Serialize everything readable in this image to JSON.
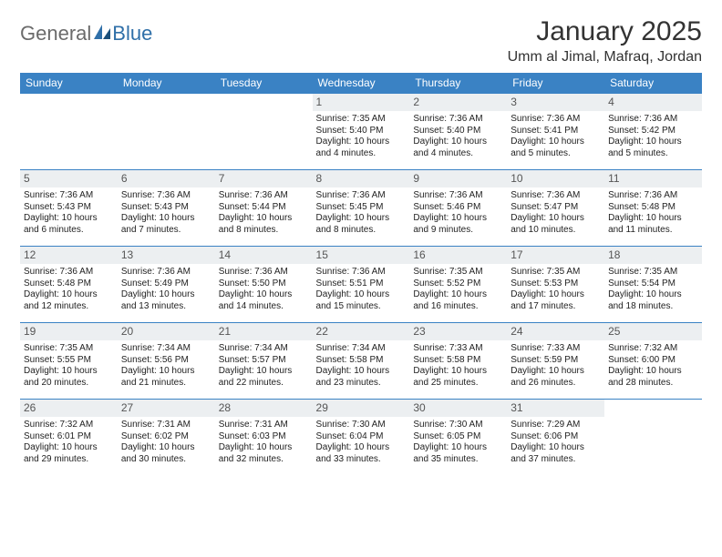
{
  "brand": {
    "part1": "General",
    "part2": "Blue"
  },
  "title": "January 2025",
  "location": "Umm al Jimal, Mafraq, Jordan",
  "colors": {
    "header_bg": "#3a82c4",
    "header_text": "#ffffff",
    "daynum_bg": "#eceff1",
    "daynum_text": "#555555",
    "border": "#3a82c4",
    "body_text": "#222222",
    "title_text": "#333333",
    "logo_gray": "#6b6b6b",
    "logo_blue": "#2f6fa8"
  },
  "weekdays": [
    "Sunday",
    "Monday",
    "Tuesday",
    "Wednesday",
    "Thursday",
    "Friday",
    "Saturday"
  ],
  "weeks": [
    [
      {
        "n": "",
        "sr": "",
        "ss": "",
        "dl": ""
      },
      {
        "n": "",
        "sr": "",
        "ss": "",
        "dl": ""
      },
      {
        "n": "",
        "sr": "",
        "ss": "",
        "dl": ""
      },
      {
        "n": "1",
        "sr": "Sunrise: 7:35 AM",
        "ss": "Sunset: 5:40 PM",
        "dl": "Daylight: 10 hours and 4 minutes."
      },
      {
        "n": "2",
        "sr": "Sunrise: 7:36 AM",
        "ss": "Sunset: 5:40 PM",
        "dl": "Daylight: 10 hours and 4 minutes."
      },
      {
        "n": "3",
        "sr": "Sunrise: 7:36 AM",
        "ss": "Sunset: 5:41 PM",
        "dl": "Daylight: 10 hours and 5 minutes."
      },
      {
        "n": "4",
        "sr": "Sunrise: 7:36 AM",
        "ss": "Sunset: 5:42 PM",
        "dl": "Daylight: 10 hours and 5 minutes."
      }
    ],
    [
      {
        "n": "5",
        "sr": "Sunrise: 7:36 AM",
        "ss": "Sunset: 5:43 PM",
        "dl": "Daylight: 10 hours and 6 minutes."
      },
      {
        "n": "6",
        "sr": "Sunrise: 7:36 AM",
        "ss": "Sunset: 5:43 PM",
        "dl": "Daylight: 10 hours and 7 minutes."
      },
      {
        "n": "7",
        "sr": "Sunrise: 7:36 AM",
        "ss": "Sunset: 5:44 PM",
        "dl": "Daylight: 10 hours and 8 minutes."
      },
      {
        "n": "8",
        "sr": "Sunrise: 7:36 AM",
        "ss": "Sunset: 5:45 PM",
        "dl": "Daylight: 10 hours and 8 minutes."
      },
      {
        "n": "9",
        "sr": "Sunrise: 7:36 AM",
        "ss": "Sunset: 5:46 PM",
        "dl": "Daylight: 10 hours and 9 minutes."
      },
      {
        "n": "10",
        "sr": "Sunrise: 7:36 AM",
        "ss": "Sunset: 5:47 PM",
        "dl": "Daylight: 10 hours and 10 minutes."
      },
      {
        "n": "11",
        "sr": "Sunrise: 7:36 AM",
        "ss": "Sunset: 5:48 PM",
        "dl": "Daylight: 10 hours and 11 minutes."
      }
    ],
    [
      {
        "n": "12",
        "sr": "Sunrise: 7:36 AM",
        "ss": "Sunset: 5:48 PM",
        "dl": "Daylight: 10 hours and 12 minutes."
      },
      {
        "n": "13",
        "sr": "Sunrise: 7:36 AM",
        "ss": "Sunset: 5:49 PM",
        "dl": "Daylight: 10 hours and 13 minutes."
      },
      {
        "n": "14",
        "sr": "Sunrise: 7:36 AM",
        "ss": "Sunset: 5:50 PM",
        "dl": "Daylight: 10 hours and 14 minutes."
      },
      {
        "n": "15",
        "sr": "Sunrise: 7:36 AM",
        "ss": "Sunset: 5:51 PM",
        "dl": "Daylight: 10 hours and 15 minutes."
      },
      {
        "n": "16",
        "sr": "Sunrise: 7:35 AM",
        "ss": "Sunset: 5:52 PM",
        "dl": "Daylight: 10 hours and 16 minutes."
      },
      {
        "n": "17",
        "sr": "Sunrise: 7:35 AM",
        "ss": "Sunset: 5:53 PM",
        "dl": "Daylight: 10 hours and 17 minutes."
      },
      {
        "n": "18",
        "sr": "Sunrise: 7:35 AM",
        "ss": "Sunset: 5:54 PM",
        "dl": "Daylight: 10 hours and 18 minutes."
      }
    ],
    [
      {
        "n": "19",
        "sr": "Sunrise: 7:35 AM",
        "ss": "Sunset: 5:55 PM",
        "dl": "Daylight: 10 hours and 20 minutes."
      },
      {
        "n": "20",
        "sr": "Sunrise: 7:34 AM",
        "ss": "Sunset: 5:56 PM",
        "dl": "Daylight: 10 hours and 21 minutes."
      },
      {
        "n": "21",
        "sr": "Sunrise: 7:34 AM",
        "ss": "Sunset: 5:57 PM",
        "dl": "Daylight: 10 hours and 22 minutes."
      },
      {
        "n": "22",
        "sr": "Sunrise: 7:34 AM",
        "ss": "Sunset: 5:58 PM",
        "dl": "Daylight: 10 hours and 23 minutes."
      },
      {
        "n": "23",
        "sr": "Sunrise: 7:33 AM",
        "ss": "Sunset: 5:58 PM",
        "dl": "Daylight: 10 hours and 25 minutes."
      },
      {
        "n": "24",
        "sr": "Sunrise: 7:33 AM",
        "ss": "Sunset: 5:59 PM",
        "dl": "Daylight: 10 hours and 26 minutes."
      },
      {
        "n": "25",
        "sr": "Sunrise: 7:32 AM",
        "ss": "Sunset: 6:00 PM",
        "dl": "Daylight: 10 hours and 28 minutes."
      }
    ],
    [
      {
        "n": "26",
        "sr": "Sunrise: 7:32 AM",
        "ss": "Sunset: 6:01 PM",
        "dl": "Daylight: 10 hours and 29 minutes."
      },
      {
        "n": "27",
        "sr": "Sunrise: 7:31 AM",
        "ss": "Sunset: 6:02 PM",
        "dl": "Daylight: 10 hours and 30 minutes."
      },
      {
        "n": "28",
        "sr": "Sunrise: 7:31 AM",
        "ss": "Sunset: 6:03 PM",
        "dl": "Daylight: 10 hours and 32 minutes."
      },
      {
        "n": "29",
        "sr": "Sunrise: 7:30 AM",
        "ss": "Sunset: 6:04 PM",
        "dl": "Daylight: 10 hours and 33 minutes."
      },
      {
        "n": "30",
        "sr": "Sunrise: 7:30 AM",
        "ss": "Sunset: 6:05 PM",
        "dl": "Daylight: 10 hours and 35 minutes."
      },
      {
        "n": "31",
        "sr": "Sunrise: 7:29 AM",
        "ss": "Sunset: 6:06 PM",
        "dl": "Daylight: 10 hours and 37 minutes."
      },
      {
        "n": "",
        "sr": "",
        "ss": "",
        "dl": ""
      }
    ]
  ]
}
